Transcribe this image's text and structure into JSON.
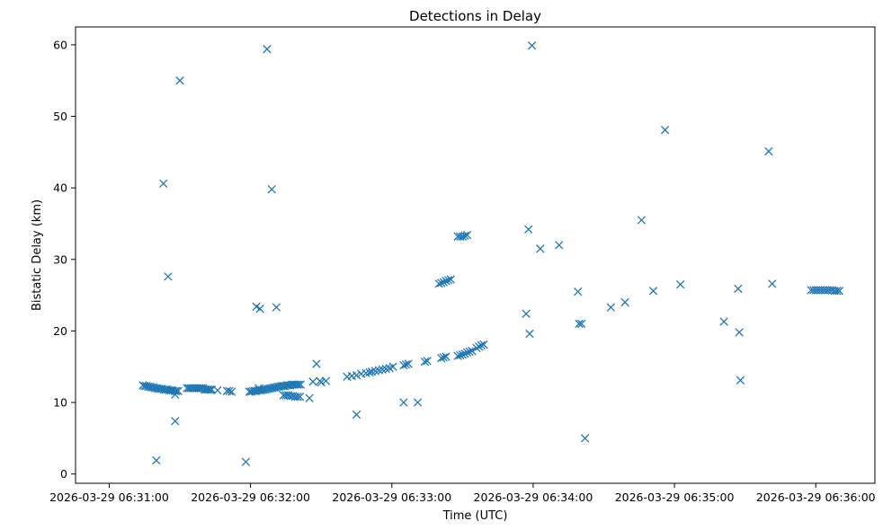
{
  "chart_data": {
    "type": "scatter",
    "title": "Detections in Delay",
    "xlabel": "Time (UTC)",
    "ylabel": "Bistatic Delay (km)",
    "x_unit": "seconds",
    "x_ticks": [
      {
        "value": 0,
        "label": "2026-03-29 06:31:00"
      },
      {
        "value": 60,
        "label": "2026-03-29 06:32:00"
      },
      {
        "value": 120,
        "label": "2026-03-29 06:33:00"
      },
      {
        "value": 180,
        "label": "2026-03-29 06:34:00"
      },
      {
        "value": 240,
        "label": "2026-03-29 06:35:00"
      },
      {
        "value": 300,
        "label": "2026-03-29 06:36:00"
      }
    ],
    "xlim": [
      -14.3,
      325.1
    ],
    "y_ticks": [
      0,
      10,
      20,
      30,
      40,
      50,
      60
    ],
    "ylim": [
      -1.3,
      62.5
    ],
    "marker": "x",
    "color": "#1f77b4",
    "grid": false,
    "series": [
      {
        "x": [
          14.3,
          15.0,
          15.8,
          16.5,
          17.3,
          18.0,
          18.8,
          19.5,
          20.3,
          21.0,
          21.8,
          22.5,
          23.3,
          24.0,
          24.8,
          25.5,
          26.3,
          27.0,
          27.8,
          28.5,
          29.3,
          33.0,
          33.8,
          34.5,
          35.3,
          36.0,
          36.8,
          37.5,
          38.3,
          39.0,
          39.8,
          40.5,
          41.3,
          42.0,
          42.8,
          43.5,
          46.0,
          50.0,
          51.0,
          52.0,
          59.5,
          60.3,
          61.0,
          61.8,
          62.5,
          63.3,
          64.0,
          64.8,
          65.5,
          66.3,
          67.0,
          67.8,
          68.5,
          69.3,
          70.0,
          70.8,
          71.5,
          72.3,
          73.0,
          73.8,
          74.5,
          75.3,
          76.0,
          76.8,
          77.5,
          78.3,
          79.0,
          79.8,
          80.5,
          81.3,
          74.0,
          75.0,
          76.0,
          77.0,
          78.0,
          79.0,
          80.0,
          81.0,
          85.0,
          90.0,
          92.0,
          101.0,
          103.0,
          105.0,
          107.0,
          109.0,
          110.5,
          111.5,
          113.0,
          114.5,
          116.0,
          117.5,
          119.0,
          120.5,
          125.0,
          126.0,
          127.0,
          134.0,
          135.0,
          141.0,
          142.0,
          143.0,
          148.0,
          149.0,
          150.0,
          151.0,
          152.0,
          153.0,
          154.0,
          148.0,
          149.0,
          150.0,
          151.0,
          152.0,
          140.0,
          141.0,
          142.0,
          143.0,
          144.0,
          145.0,
          156.0,
          157.0,
          158.0,
          159.0,
          20.0,
          25.0,
          28.0,
          23.0,
          67.0,
          69.0,
          71.0,
          62.5,
          64.0,
          125.0,
          131.0,
          177.0,
          105.0,
          88.0,
          86.5,
          89.5,
          183.0,
          191.0,
          213.0,
          219.0,
          242.5,
          261.0,
          280.0,
          268.0,
          236.0,
          226.0,
          199.0,
          199.5,
          200.5,
          178.0,
          178.5,
          202.0,
          231.0,
          267.0,
          267.5,
          281.5,
          298.0,
          299.0,
          300.0,
          301.0,
          302.0,
          303.0,
          304.0,
          305.0,
          306.0,
          307.0,
          308.0,
          309.0,
          310.0,
          179.5,
          30.0,
          63.5,
          28.0,
          58.0
        ],
        "y": [
          12.4,
          12.3,
          12.3,
          12.2,
          12.2,
          12.1,
          12.1,
          12.0,
          12.0,
          11.9,
          11.9,
          11.9,
          11.8,
          11.8,
          11.8,
          11.7,
          11.7,
          11.7,
          11.6,
          11.6,
          11.6,
          12.0,
          12.0,
          12.0,
          12.0,
          12.0,
          12.0,
          12.0,
          12.0,
          12.0,
          12.0,
          11.8,
          11.8,
          11.8,
          11.8,
          11.8,
          11.7,
          11.6,
          11.6,
          11.5,
          11.5,
          11.5,
          11.6,
          11.6,
          11.6,
          11.7,
          11.7,
          11.7,
          11.8,
          11.8,
          11.9,
          11.9,
          12.0,
          12.0,
          12.1,
          12.1,
          12.2,
          12.2,
          12.3,
          12.3,
          12.3,
          12.4,
          12.4,
          12.4,
          12.5,
          12.5,
          12.5,
          12.5,
          12.5,
          12.5,
          11.0,
          11.0,
          11.0,
          10.9,
          10.9,
          10.8,
          10.8,
          10.8,
          10.6,
          12.8,
          13.0,
          13.6,
          13.7,
          13.8,
          14.0,
          14.1,
          14.2,
          14.3,
          14.4,
          14.5,
          14.6,
          14.7,
          14.8,
          15.0,
          15.2,
          15.3,
          15.4,
          15.7,
          15.8,
          16.2,
          16.3,
          16.4,
          16.5,
          16.6,
          16.7,
          16.8,
          17.0,
          17.1,
          17.2,
          33.2,
          33.2,
          33.2,
          33.3,
          33.4,
          26.6,
          26.7,
          26.8,
          27.0,
          27.1,
          27.2,
          17.6,
          17.8,
          18.0,
          18.1,
          1.9,
          27.6,
          11.1,
          40.6,
          59.4,
          39.8,
          23.3,
          23.4,
          23.1,
          10.0,
          10.0,
          22.4,
          8.3,
          15.4,
          12.9,
          13.0,
          31.5,
          32.0,
          23.3,
          24.0,
          26.5,
          21.3,
          45.1,
          13.1,
          48.1,
          35.5,
          25.5,
          21.0,
          21.0,
          34.2,
          19.6,
          5.0,
          25.6,
          25.9,
          19.8,
          26.6,
          25.7,
          25.7,
          25.7,
          25.7,
          25.7,
          25.7,
          25.7,
          25.7,
          25.7,
          25.7,
          25.6,
          25.6,
          25.6,
          59.9,
          55.0,
          12.0,
          7.4,
          1.7
        ]
      }
    ]
  }
}
